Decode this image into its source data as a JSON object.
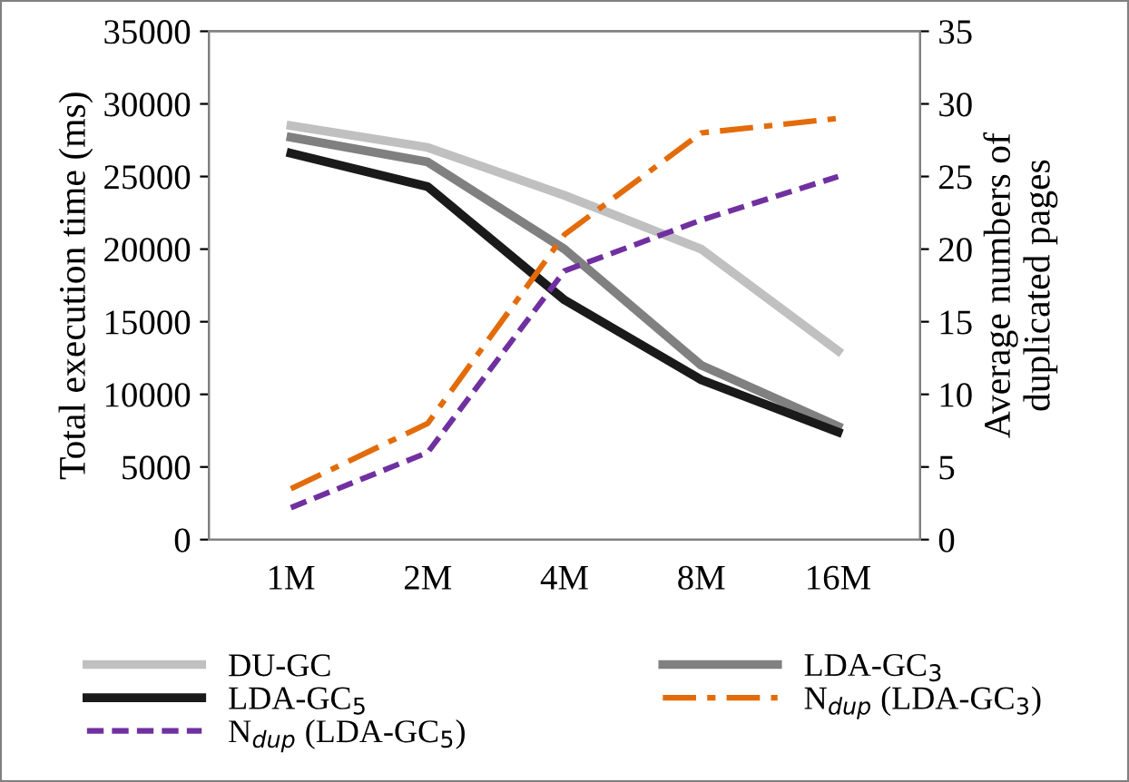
{
  "chart_data": {
    "type": "line",
    "ylabel": "Total execution time (ms)",
    "y2label": "Average numbers of\nduplicated pages",
    "categories": [
      "1M",
      "2M",
      "4M",
      "8M",
      "16M"
    ],
    "series": [
      {
        "name": "DU-GC",
        "color": "#c0c0c0",
        "values": [
          28500,
          27000,
          23700,
          20000,
          13000
        ],
        "line_style": "solid"
      },
      {
        "name": "LDA-GC$_{3}$",
        "color": "#808080",
        "values": [
          27700,
          26000,
          20000,
          12000,
          7800
        ],
        "line_style": "solid"
      },
      {
        "name": "LDA-GC$_{5}$",
        "color": "#1a1a1a",
        "values": [
          26600,
          24300,
          16500,
          11000,
          7400
        ],
        "line_style": "solid"
      },
      {
        "name": "N$_{dup}$ (LDA-GC$_{3}$)",
        "color": "#e36c0a",
        "values": [
          3.5,
          8,
          21,
          28,
          29
        ],
        "axis": "y2",
        "line_style": "dashdot"
      },
      {
        "name": "N$_{dup}$ (LDA-GC$_{5}$)",
        "color": "#7030a0",
        "values": [
          2.2,
          6,
          18.5,
          22,
          25
        ],
        "axis": "y2",
        "line_style": "dashed"
      }
    ],
    "ylim": [
      0,
      35000
    ],
    "yticks": [
      0,
      5000,
      10000,
      15000,
      20000,
      25000,
      30000,
      35000
    ],
    "y2lim": [
      0,
      35
    ],
    "y2ticks": [
      0,
      5,
      10,
      15,
      20,
      25,
      30,
      35
    ],
    "grid": false,
    "legend": "bottom",
    "marker": "none"
  }
}
